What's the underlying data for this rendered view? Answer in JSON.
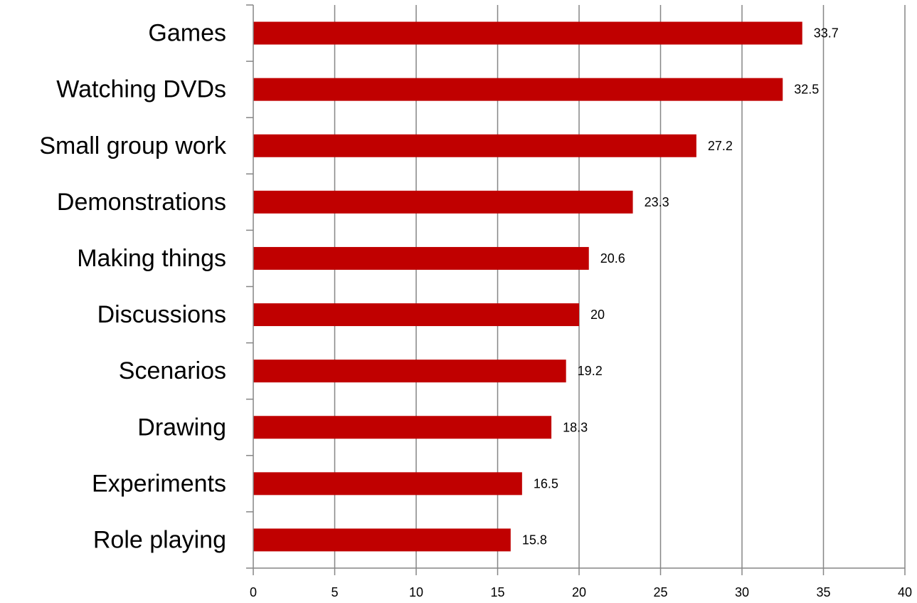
{
  "chart_data": {
    "type": "bar",
    "orientation": "horizontal",
    "title": "",
    "xlabel": "",
    "ylabel": "",
    "categories": [
      "Games",
      "Watching DVDs",
      "Small group work",
      "Demonstrations",
      "Making things",
      "Discussions",
      "Scenarios",
      "Drawing",
      "Experiments",
      "Role playing"
    ],
    "values": [
      33.7,
      32.5,
      27.2,
      23.3,
      20.6,
      20,
      19.2,
      18.3,
      16.5,
      15.8
    ],
    "data_labels": [
      "33.7",
      "32.5",
      "27.2",
      "23.3",
      "20.6",
      "20",
      "19.2",
      "18.3",
      "16.5",
      "15.8"
    ],
    "xlim": [
      0,
      40
    ],
    "xticks": [
      0,
      5,
      10,
      15,
      20,
      25,
      30,
      35,
      40
    ],
    "xtick_labels": [
      "0",
      "5",
      "10",
      "15",
      "20",
      "25",
      "30",
      "35",
      "40"
    ],
    "grid": "vertical",
    "legend": "none",
    "bar_color": "#c00000",
    "grid_color": "#868686",
    "axis_color": "#868686"
  }
}
